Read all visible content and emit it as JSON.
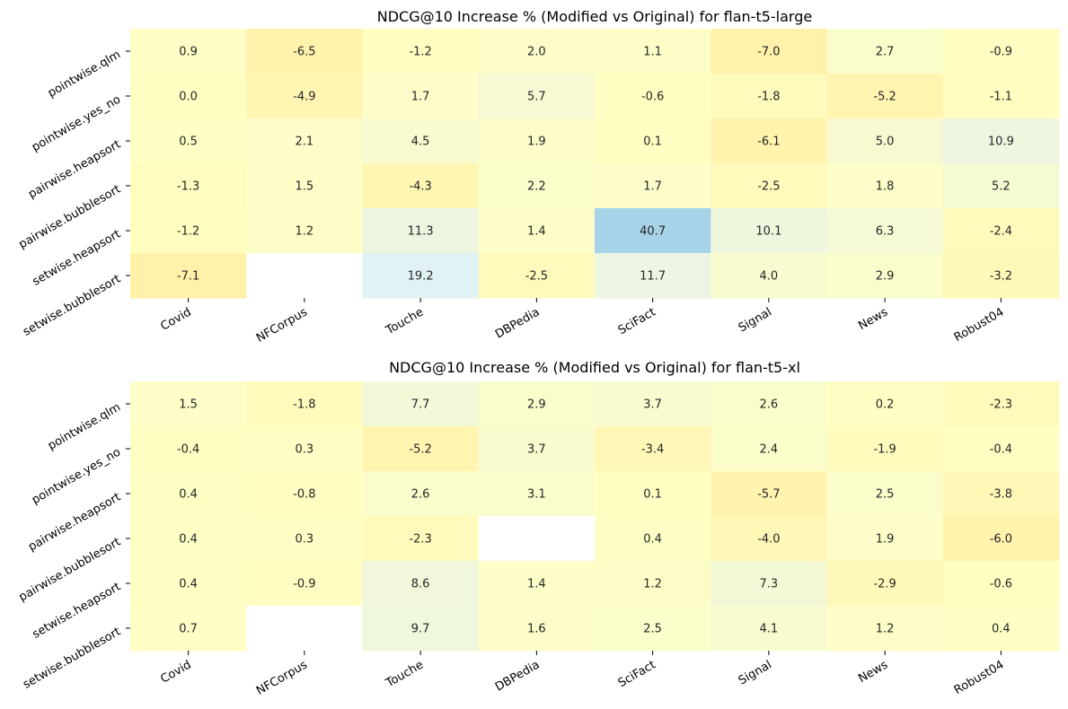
{
  "colors": {
    "background": "#ffffff",
    "missing": "#ffffff",
    "text": "#262626",
    "scale": [
      {
        "v": -7.5,
        "c": "#fff0a8"
      },
      {
        "v": 0.0,
        "c": "#ffffc4"
      },
      {
        "v": 6.0,
        "c": "#f5f9d4"
      },
      {
        "v": 12.0,
        "c": "#ecf5e2"
      },
      {
        "v": 20.0,
        "c": "#e0f2f6"
      },
      {
        "v": 41.0,
        "c": "#a6d3e8"
      }
    ]
  },
  "chart_data": [
    {
      "type": "heatmap",
      "title": "NDCG@10 Increase % (Modified vs Original) for flan-t5-large",
      "xlabel": "",
      "ylabel": "",
      "columns": [
        "Covid",
        "NFCorpus",
        "Touche",
        "DBPedia",
        "SciFact",
        "Signal",
        "News",
        "Robust04"
      ],
      "rows": [
        "pointwise.qlm",
        "pointwise.yes_no",
        "pairwise.heapsort",
        "pairwise.bubblesort",
        "setwise.heapsort",
        "setwise.bubblesort"
      ],
      "values": [
        [
          0.9,
          -6.5,
          -1.2,
          2.0,
          1.1,
          -7.0,
          2.7,
          -0.9
        ],
        [
          0.0,
          -4.9,
          1.7,
          5.7,
          -0.6,
          -1.8,
          -5.2,
          -1.1
        ],
        [
          0.5,
          2.1,
          4.5,
          1.9,
          0.1,
          -6.1,
          5.0,
          10.9
        ],
        [
          -1.3,
          1.5,
          -4.3,
          2.2,
          1.7,
          -2.5,
          1.8,
          5.2
        ],
        [
          -1.2,
          1.2,
          11.3,
          1.4,
          40.7,
          10.1,
          6.3,
          -2.4
        ],
        [
          -7.1,
          null,
          19.2,
          -2.5,
          11.7,
          4.0,
          2.9,
          -3.2
        ]
      ],
      "colorbar": false,
      "grid": false
    },
    {
      "type": "heatmap",
      "title": "NDCG@10 Increase % (Modified vs Original) for flan-t5-xl",
      "xlabel": "",
      "ylabel": "",
      "columns": [
        "Covid",
        "NFCorpus",
        "Touche",
        "DBPedia",
        "SciFact",
        "Signal",
        "News",
        "Robust04"
      ],
      "rows": [
        "pointwise.qlm",
        "pointwise.yes_no",
        "pairwise.heapsort",
        "pairwise.bubblesort",
        "setwise.heapsort",
        "setwise.bubblesort"
      ],
      "values": [
        [
          1.5,
          -1.8,
          7.7,
          2.9,
          3.7,
          2.6,
          0.2,
          -2.3
        ],
        [
          -0.4,
          0.3,
          -5.2,
          3.7,
          -3.4,
          2.4,
          -1.9,
          -0.4
        ],
        [
          0.4,
          -0.8,
          2.6,
          3.1,
          0.1,
          -5.7,
          2.5,
          -3.8
        ],
        [
          0.4,
          0.3,
          -2.3,
          null,
          0.4,
          -4.0,
          1.9,
          -6.0
        ],
        [
          0.4,
          -0.9,
          8.6,
          1.4,
          1.2,
          7.3,
          -2.9,
          -0.6
        ],
        [
          0.7,
          null,
          9.7,
          1.6,
          2.5,
          4.1,
          1.2,
          0.4
        ]
      ],
      "colorbar": false,
      "grid": false
    }
  ]
}
